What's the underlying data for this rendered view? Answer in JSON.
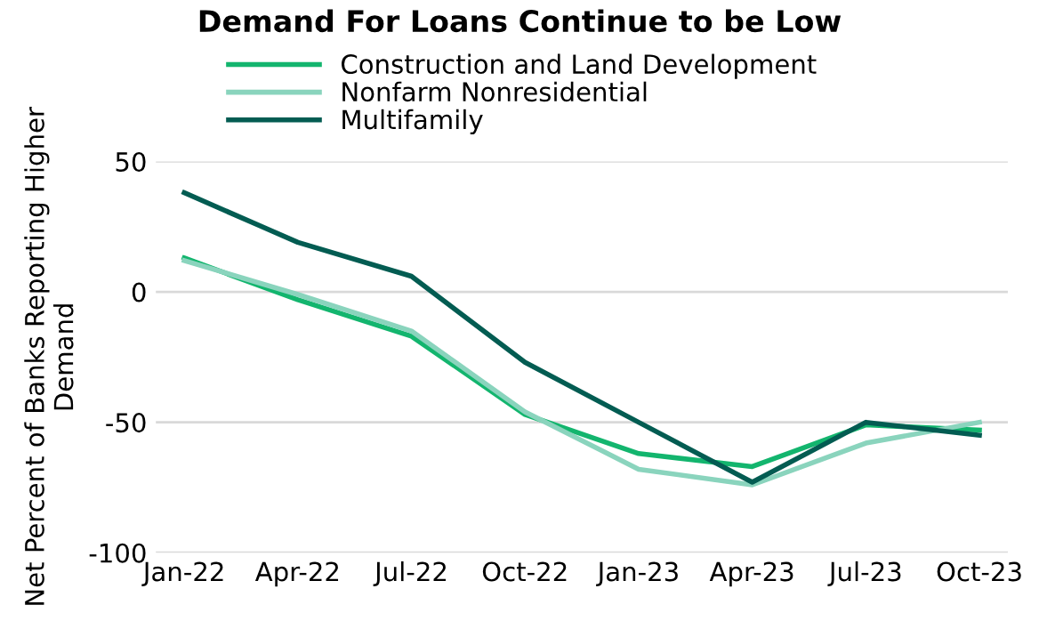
{
  "chart_data": {
    "type": "line",
    "title": "Demand For Loans Continue to be Low",
    "ylabel": "Net Percent of Banks Reporting Higher Demand",
    "categories": [
      "Jan-22",
      "Apr-22",
      "Jul-22",
      "Oct-22",
      "Jan-23",
      "Apr-23",
      "Jul-23",
      "Oct-23"
    ],
    "series": [
      {
        "name": "Construction and Land Development",
        "color": "#13b56e",
        "values": [
          13,
          -3,
          -17,
          -47,
          -62,
          -67,
          -51,
          -53
        ]
      },
      {
        "name": "Nonfarm Nonresidential",
        "color": "#8ad4bd",
        "values": [
          12,
          -1,
          -15,
          -46,
          -68,
          -74,
          -58,
          -50
        ]
      },
      {
        "name": "Multifamily",
        "color": "#035c52",
        "values": [
          38,
          19,
          6,
          -27,
          -50,
          -73,
          -50,
          -55
        ]
      }
    ],
    "ylim": [
      -100,
      50
    ],
    "yticks": [
      -100,
      -50,
      0,
      50
    ],
    "grid": "y",
    "legend": "top left"
  }
}
